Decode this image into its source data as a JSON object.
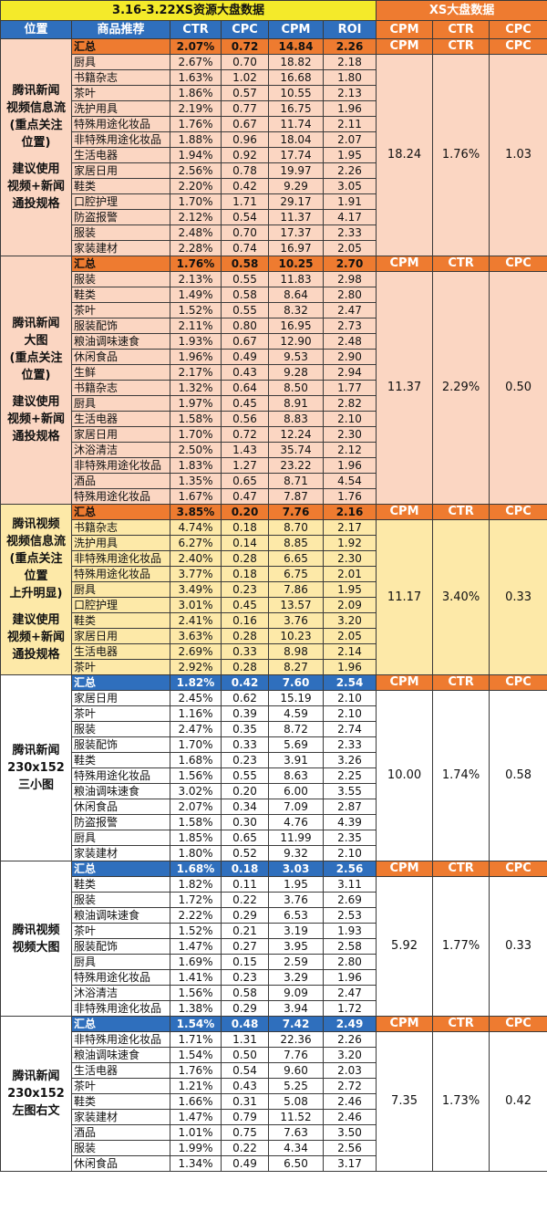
{
  "title_left": "3.16-3.22XS资源大盘数据",
  "title_right": "XS大盘数据",
  "headers": [
    "位置",
    "商品推荐",
    "CTR",
    "CPC",
    "CPM",
    "ROI",
    "CPM",
    "CTR",
    "CPC"
  ],
  "market_headers": [
    "CPM",
    "CTR",
    "CPC"
  ],
  "colors": {
    "peach": "#fbd6c2",
    "yellow": "#fde9a8",
    "orange": "#ee7b30",
    "blue": "#2f6fbd",
    "title_yellow": "#f4ea2a"
  },
  "sections": [
    {
      "theme": "peach",
      "sub_color": "orange",
      "position_lines": [
        "腾讯新闻",
        "视频信息流",
        "(重点关注",
        "位置)",
        "",
        "建议使用",
        "视频+新闻",
        "通投规格"
      ],
      "summary": {
        "name": "汇总",
        "ctr": "2.07%",
        "cpc": "0.72",
        "cpm": "14.84",
        "roi": "2.26"
      },
      "market": {
        "cpm": "18.24",
        "ctr": "1.76%",
        "cpc": "1.03"
      },
      "rows": [
        {
          "name": "厨具",
          "ctr": "2.67%",
          "cpc": "0.70",
          "cpm": "18.82",
          "roi": "2.18"
        },
        {
          "name": "书籍杂志",
          "ctr": "1.63%",
          "cpc": "1.02",
          "cpm": "16.68",
          "roi": "1.80"
        },
        {
          "name": "茶叶",
          "ctr": "1.86%",
          "cpc": "0.57",
          "cpm": "10.55",
          "roi": "2.13"
        },
        {
          "name": "洗护用具",
          "ctr": "2.19%",
          "cpc": "0.77",
          "cpm": "16.75",
          "roi": "1.96"
        },
        {
          "name": "特殊用途化妆品",
          "ctr": "1.76%",
          "cpc": "0.67",
          "cpm": "11.74",
          "roi": "2.11"
        },
        {
          "name": "非特殊用途化妆品",
          "ctr": "1.88%",
          "cpc": "0.96",
          "cpm": "18.04",
          "roi": "2.07"
        },
        {
          "name": "生活电器",
          "ctr": "1.94%",
          "cpc": "0.92",
          "cpm": "17.74",
          "roi": "1.95"
        },
        {
          "name": "家居日用",
          "ctr": "2.56%",
          "cpc": "0.78",
          "cpm": "19.97",
          "roi": "2.26"
        },
        {
          "name": "鞋类",
          "ctr": "2.20%",
          "cpc": "0.42",
          "cpm": "9.29",
          "roi": "3.05"
        },
        {
          "name": "口腔护理",
          "ctr": "1.70%",
          "cpc": "1.71",
          "cpm": "29.17",
          "roi": "1.91"
        },
        {
          "name": "防盗报警",
          "ctr": "2.12%",
          "cpc": "0.54",
          "cpm": "11.37",
          "roi": "4.17"
        },
        {
          "name": "服装",
          "ctr": "2.48%",
          "cpc": "0.70",
          "cpm": "17.37",
          "roi": "2.33"
        },
        {
          "name": "家装建材",
          "ctr": "2.28%",
          "cpc": "0.74",
          "cpm": "16.97",
          "roi": "2.05"
        }
      ]
    },
    {
      "theme": "peach",
      "sub_color": "orange",
      "position_lines": [
        "腾讯新闻",
        "大图",
        "(重点关注",
        "位置)",
        "",
        "建议使用",
        "视频+新闻",
        "通投规格"
      ],
      "summary": {
        "name": "汇总",
        "ctr": "1.76%",
        "cpc": "0.58",
        "cpm": "10.25",
        "roi": "2.70"
      },
      "market": {
        "cpm": "11.37",
        "ctr": "2.29%",
        "cpc": "0.50"
      },
      "rows": [
        {
          "name": "服装",
          "ctr": "2.13%",
          "cpc": "0.55",
          "cpm": "11.83",
          "roi": "2.98"
        },
        {
          "name": "鞋类",
          "ctr": "1.49%",
          "cpc": "0.58",
          "cpm": "8.64",
          "roi": "2.80"
        },
        {
          "name": "茶叶",
          "ctr": "1.52%",
          "cpc": "0.55",
          "cpm": "8.32",
          "roi": "2.47"
        },
        {
          "name": "服装配饰",
          "ctr": "2.11%",
          "cpc": "0.80",
          "cpm": "16.95",
          "roi": "2.73"
        },
        {
          "name": "粮油调味速食",
          "ctr": "1.93%",
          "cpc": "0.67",
          "cpm": "12.90",
          "roi": "2.48"
        },
        {
          "name": "休闲食品",
          "ctr": "1.96%",
          "cpc": "0.49",
          "cpm": "9.53",
          "roi": "2.90"
        },
        {
          "name": "生鲜",
          "ctr": "2.17%",
          "cpc": "0.43",
          "cpm": "9.28",
          "roi": "2.94"
        },
        {
          "name": "书籍杂志",
          "ctr": "1.32%",
          "cpc": "0.64",
          "cpm": "8.50",
          "roi": "1.77"
        },
        {
          "name": "厨具",
          "ctr": "1.97%",
          "cpc": "0.45",
          "cpm": "8.91",
          "roi": "2.82"
        },
        {
          "name": "生活电器",
          "ctr": "1.58%",
          "cpc": "0.56",
          "cpm": "8.83",
          "roi": "2.10"
        },
        {
          "name": "家居日用",
          "ctr": "1.70%",
          "cpc": "0.72",
          "cpm": "12.24",
          "roi": "2.30"
        },
        {
          "name": "沐浴清洁",
          "ctr": "2.50%",
          "cpc": "1.43",
          "cpm": "35.74",
          "roi": "2.12"
        },
        {
          "name": "非特殊用途化妆品",
          "ctr": "1.83%",
          "cpc": "1.27",
          "cpm": "23.22",
          "roi": "1.96"
        },
        {
          "name": "酒品",
          "ctr": "1.35%",
          "cpc": "0.65",
          "cpm": "8.71",
          "roi": "4.54"
        },
        {
          "name": "特殊用途化妆品",
          "ctr": "1.67%",
          "cpc": "0.47",
          "cpm": "7.87",
          "roi": "1.76"
        }
      ]
    },
    {
      "theme": "yellow",
      "sub_color": "orange",
      "position_lines": [
        "腾讯视频",
        "视频信息流",
        "(重点关注",
        "位置",
        "上升明显)",
        "",
        "建议使用",
        "视频+新闻",
        "通投规格"
      ],
      "summary": {
        "name": "汇总",
        "ctr": "3.85%",
        "cpc": "0.20",
        "cpm": "7.76",
        "roi": "2.16"
      },
      "market": {
        "cpm": "11.17",
        "ctr": "3.40%",
        "cpc": "0.33"
      },
      "rows": [
        {
          "name": "书籍杂志",
          "ctr": "4.74%",
          "cpc": "0.18",
          "cpm": "8.70",
          "roi": "2.17"
        },
        {
          "name": "洗护用具",
          "ctr": "6.27%",
          "cpc": "0.14",
          "cpm": "8.85",
          "roi": "1.92"
        },
        {
          "name": "非特殊用途化妆品",
          "ctr": "2.40%",
          "cpc": "0.28",
          "cpm": "6.65",
          "roi": "2.30"
        },
        {
          "name": "特殊用途化妆品",
          "ctr": "3.77%",
          "cpc": "0.18",
          "cpm": "6.75",
          "roi": "2.01"
        },
        {
          "name": "厨具",
          "ctr": "3.49%",
          "cpc": "0.23",
          "cpm": "7.86",
          "roi": "1.95"
        },
        {
          "name": "口腔护理",
          "ctr": "3.01%",
          "cpc": "0.45",
          "cpm": "13.57",
          "roi": "2.09"
        },
        {
          "name": "鞋类",
          "ctr": "2.41%",
          "cpc": "0.16",
          "cpm": "3.76",
          "roi": "3.20"
        },
        {
          "name": "家居日用",
          "ctr": "3.63%",
          "cpc": "0.28",
          "cpm": "10.23",
          "roi": "2.05"
        },
        {
          "name": "生活电器",
          "ctr": "2.69%",
          "cpc": "0.33",
          "cpm": "8.98",
          "roi": "2.14"
        },
        {
          "name": "茶叶",
          "ctr": "2.92%",
          "cpc": "0.28",
          "cpm": "8.27",
          "roi": "1.96"
        }
      ]
    },
    {
      "theme": "white",
      "sub_color": "blue",
      "position_lines": [
        "腾讯新闻",
        "230x152",
        "三小图"
      ],
      "summary": {
        "name": "汇总",
        "ctr": "1.82%",
        "cpc": "0.42",
        "cpm": "7.60",
        "roi": "2.54"
      },
      "market": {
        "cpm": "10.00",
        "ctr": "1.74%",
        "cpc": "0.58"
      },
      "rows": [
        {
          "name": "家居日用",
          "ctr": "2.45%",
          "cpc": "0.62",
          "cpm": "15.19",
          "roi": "2.10"
        },
        {
          "name": "茶叶",
          "ctr": "1.16%",
          "cpc": "0.39",
          "cpm": "4.59",
          "roi": "2.10"
        },
        {
          "name": "服装",
          "ctr": "2.47%",
          "cpc": "0.35",
          "cpm": "8.72",
          "roi": "2.74"
        },
        {
          "name": "服装配饰",
          "ctr": "1.70%",
          "cpc": "0.33",
          "cpm": "5.69",
          "roi": "2.33"
        },
        {
          "name": "鞋类",
          "ctr": "1.68%",
          "cpc": "0.23",
          "cpm": "3.91",
          "roi": "3.26"
        },
        {
          "name": "特殊用途化妆品",
          "ctr": "1.56%",
          "cpc": "0.55",
          "cpm": "8.63",
          "roi": "2.25"
        },
        {
          "name": "粮油调味速食",
          "ctr": "3.02%",
          "cpc": "0.20",
          "cpm": "6.00",
          "roi": "3.55"
        },
        {
          "name": "休闲食品",
          "ctr": "2.07%",
          "cpc": "0.34",
          "cpm": "7.09",
          "roi": "2.87"
        },
        {
          "name": "防盗报警",
          "ctr": "1.58%",
          "cpc": "0.30",
          "cpm": "4.76",
          "roi": "4.39"
        },
        {
          "name": "厨具",
          "ctr": "1.85%",
          "cpc": "0.65",
          "cpm": "11.99",
          "roi": "2.35"
        },
        {
          "name": "家装建材",
          "ctr": "1.80%",
          "cpc": "0.52",
          "cpm": "9.32",
          "roi": "2.10"
        }
      ]
    },
    {
      "theme": "white",
      "sub_color": "blue",
      "position_lines": [
        "腾讯视频",
        "视频大图"
      ],
      "summary": {
        "name": "汇总",
        "ctr": "1.68%",
        "cpc": "0.18",
        "cpm": "3.03",
        "roi": "2.56"
      },
      "market": {
        "cpm": "5.92",
        "ctr": "1.77%",
        "cpc": "0.33"
      },
      "rows": [
        {
          "name": "鞋类",
          "ctr": "1.82%",
          "cpc": "0.11",
          "cpm": "1.95",
          "roi": "3.11"
        },
        {
          "name": "服装",
          "ctr": "1.72%",
          "cpc": "0.22",
          "cpm": "3.76",
          "roi": "2.69"
        },
        {
          "name": "粮油调味速食",
          "ctr": "2.22%",
          "cpc": "0.29",
          "cpm": "6.53",
          "roi": "2.53"
        },
        {
          "name": "茶叶",
          "ctr": "1.52%",
          "cpc": "0.21",
          "cpm": "3.19",
          "roi": "1.93"
        },
        {
          "name": "服装配饰",
          "ctr": "1.47%",
          "cpc": "0.27",
          "cpm": "3.95",
          "roi": "2.58"
        },
        {
          "name": "厨具",
          "ctr": "1.69%",
          "cpc": "0.15",
          "cpm": "2.59",
          "roi": "2.80"
        },
        {
          "name": "特殊用途化妆品",
          "ctr": "1.41%",
          "cpc": "0.23",
          "cpm": "3.29",
          "roi": "1.96"
        },
        {
          "name": "沐浴清洁",
          "ctr": "1.56%",
          "cpc": "0.58",
          "cpm": "9.09",
          "roi": "2.47"
        },
        {
          "name": "非特殊用途化妆品",
          "ctr": "1.38%",
          "cpc": "0.29",
          "cpm": "3.94",
          "roi": "1.72"
        }
      ]
    },
    {
      "theme": "white",
      "sub_color": "blue",
      "position_lines": [
        "腾讯新闻",
        "230x152",
        "左图右文"
      ],
      "summary": {
        "name": "汇总",
        "ctr": "1.54%",
        "cpc": "0.48",
        "cpm": "7.42",
        "roi": "2.49"
      },
      "market": {
        "cpm": "7.35",
        "ctr": "1.73%",
        "cpc": "0.42"
      },
      "rows": [
        {
          "name": "非特殊用途化妆品",
          "ctr": "1.71%",
          "cpc": "1.31",
          "cpm": "22.36",
          "roi": "2.26"
        },
        {
          "name": "粮油调味速食",
          "ctr": "1.54%",
          "cpc": "0.50",
          "cpm": "7.76",
          "roi": "3.20"
        },
        {
          "name": "生活电器",
          "ctr": "1.76%",
          "cpc": "0.54",
          "cpm": "9.60",
          "roi": "2.03"
        },
        {
          "name": "茶叶",
          "ctr": "1.21%",
          "cpc": "0.43",
          "cpm": "5.25",
          "roi": "2.72"
        },
        {
          "name": "鞋类",
          "ctr": "1.66%",
          "cpc": "0.31",
          "cpm": "5.08",
          "roi": "2.46"
        },
        {
          "name": "家装建材",
          "ctr": "1.47%",
          "cpc": "0.79",
          "cpm": "11.52",
          "roi": "2.46"
        },
        {
          "name": "酒品",
          "ctr": "1.01%",
          "cpc": "0.75",
          "cpm": "7.63",
          "roi": "3.50"
        },
        {
          "name": "服装",
          "ctr": "1.99%",
          "cpc": "0.22",
          "cpm": "4.34",
          "roi": "2.56"
        },
        {
          "name": "休闲食品",
          "ctr": "1.34%",
          "cpc": "0.49",
          "cpm": "6.50",
          "roi": "3.17"
        }
      ]
    }
  ]
}
